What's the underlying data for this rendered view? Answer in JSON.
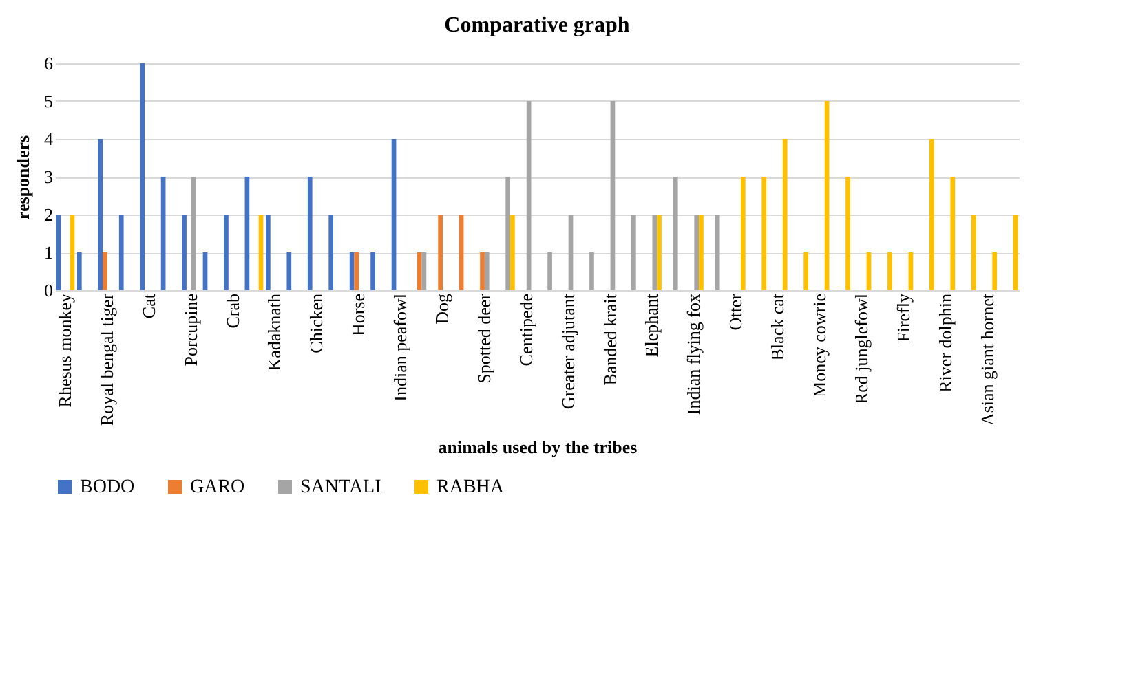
{
  "chart_data": {
    "type": "bar",
    "title": "Comparative graph",
    "xlabel": "animals used by the tribes",
    "ylabel": "responders",
    "categories": [
      "Rhesus monkey",
      null,
      "Royal bengal tiger",
      null,
      "Cat",
      null,
      "Porcupine",
      null,
      "Crab",
      null,
      "Kadaknath",
      null,
      "Chicken",
      null,
      "Horse",
      null,
      "Indian peafowl",
      null,
      "Dog",
      null,
      "Spotted deer",
      null,
      "Centipede",
      null,
      "Greater adjutant",
      null,
      "Banded krait",
      null,
      "Elephant",
      null,
      "Indian flying fox",
      null,
      "Otter",
      null,
      "Black cat",
      null,
      "Money cowrie",
      null,
      "Red junglefowl",
      null,
      "Firefly",
      null,
      "River dolphin",
      null,
      "Asian giant hornet",
      null
    ],
    "series": [
      {
        "name": "BODO",
        "color": "#4472c4",
        "values": [
          2,
          1,
          4,
          2,
          6,
          3,
          2,
          1,
          2,
          3,
          2,
          1,
          3,
          2,
          1,
          1,
          4,
          0,
          0,
          0,
          0,
          0,
          0,
          0,
          0,
          0,
          0,
          0,
          0,
          0,
          0,
          0,
          0,
          0,
          0,
          0,
          0,
          0,
          0,
          0,
          0,
          0,
          0,
          0,
          0,
          0
        ]
      },
      {
        "name": "GARO",
        "color": "#ed7d31",
        "values": [
          0,
          0,
          1,
          0,
          0,
          0,
          0,
          0,
          0,
          0,
          0,
          0,
          0,
          0,
          1,
          0,
          0,
          1,
          2,
          2,
          1,
          0,
          0,
          0,
          0,
          0,
          0,
          0,
          0,
          0,
          0,
          0,
          0,
          0,
          0,
          0,
          0,
          0,
          0,
          0,
          0,
          0,
          0,
          0,
          0,
          0
        ]
      },
      {
        "name": "SANTALI",
        "color": "#a5a5a5",
        "values": [
          0,
          0,
          0,
          0,
          0,
          0,
          3,
          0,
          0,
          0,
          0,
          0,
          0,
          0,
          0,
          0,
          0,
          1,
          0,
          0,
          1,
          3,
          5,
          1,
          2,
          1,
          5,
          2,
          2,
          3,
          2,
          2,
          0,
          0,
          0,
          0,
          0,
          0,
          0,
          0,
          0,
          0,
          0,
          0,
          0,
          0
        ]
      },
      {
        "name": "RABHA",
        "color": "#ffc000",
        "values": [
          2,
          0,
          0,
          0,
          0,
          0,
          0,
          0,
          0,
          2,
          0,
          0,
          0,
          0,
          0,
          0,
          0,
          0,
          0,
          0,
          0,
          2,
          0,
          0,
          0,
          0,
          0,
          0,
          2,
          0,
          2,
          0,
          3,
          3,
          4,
          1,
          5,
          3,
          1,
          1,
          1,
          4,
          3,
          2,
          1,
          2
        ]
      }
    ],
    "ylim": [
      0,
      6
    ],
    "yticks": [
      0,
      1,
      2,
      3,
      4,
      5,
      6
    ],
    "grid": "y",
    "legend": "bottom"
  }
}
